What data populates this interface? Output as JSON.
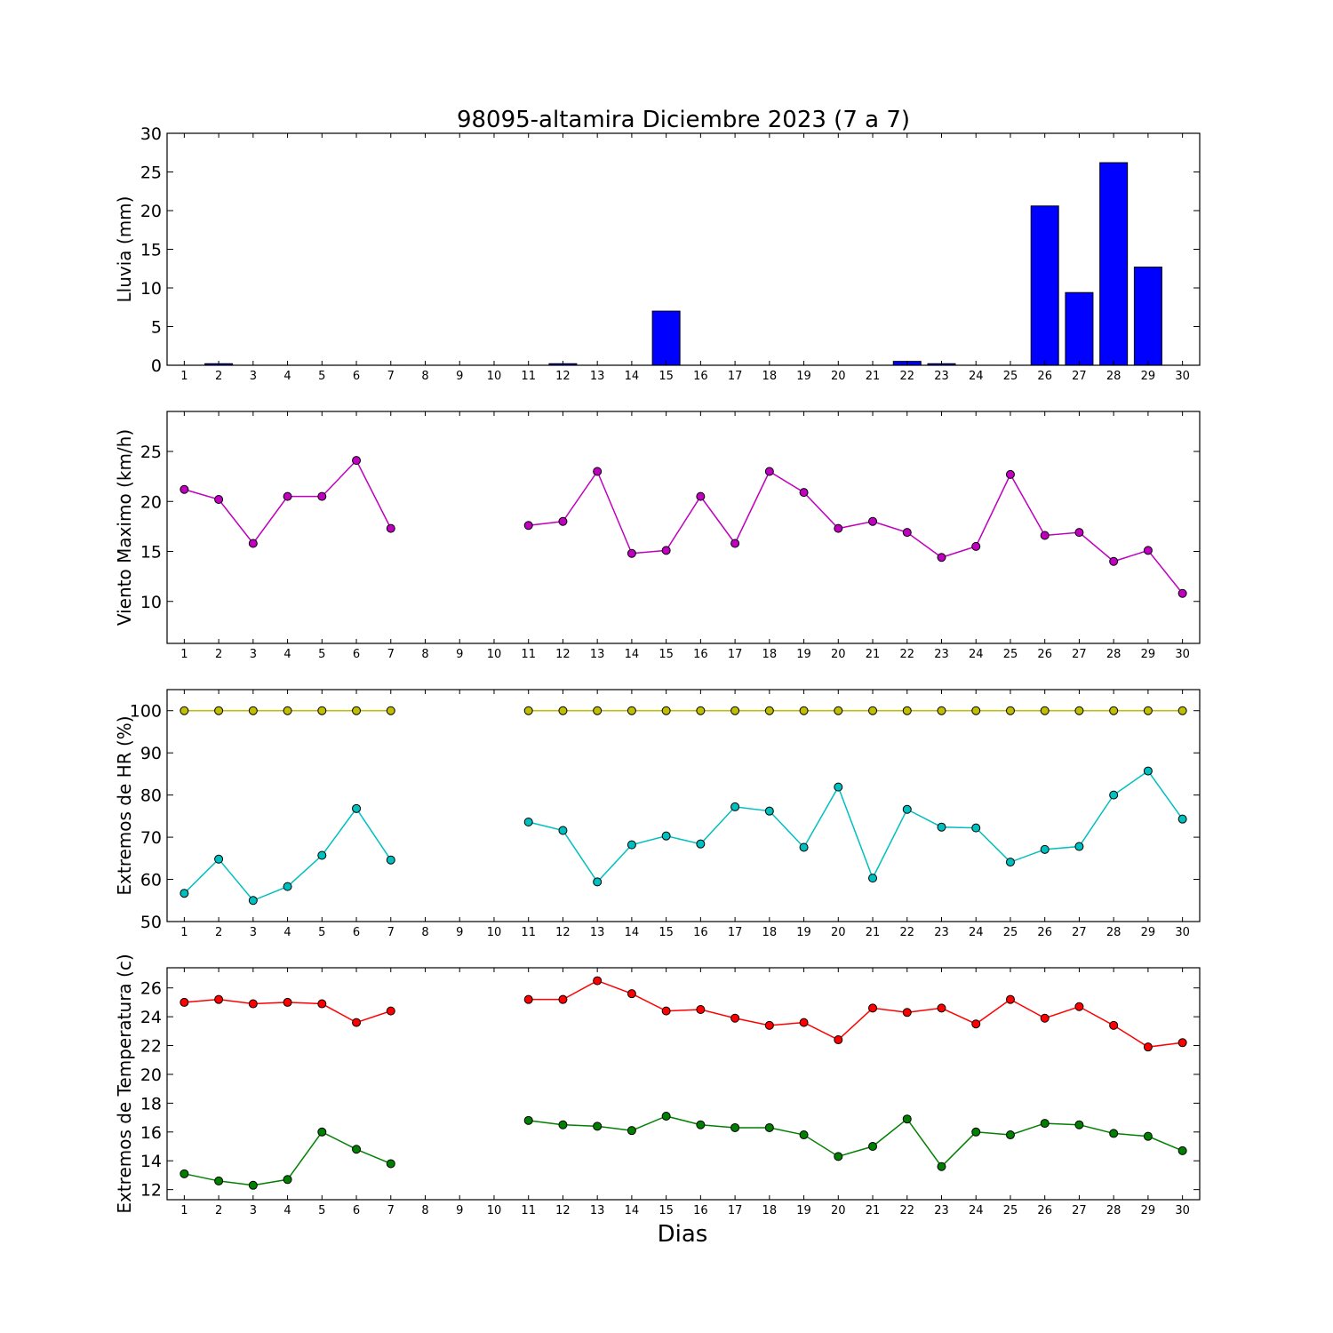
{
  "chart_data": [
    {
      "id": "lluvia",
      "type": "bar",
      "title": "98095-altamira Diciembre 2023  (7 a 7)",
      "ylabel": "Lluvia (mm)",
      "xlabel": "",
      "xlim": [
        0.5,
        30.5
      ],
      "ylim": [
        0,
        30
      ],
      "yticks": [
        0,
        5,
        10,
        15,
        20,
        25,
        30
      ],
      "xticks": [
        1,
        2,
        3,
        4,
        5,
        6,
        7,
        8,
        9,
        10,
        11,
        12,
        13,
        14,
        15,
        16,
        17,
        18,
        19,
        20,
        21,
        22,
        23,
        24,
        25,
        26,
        27,
        28,
        29,
        30
      ],
      "colors": {
        "bar": "#0000ff"
      },
      "series": [
        {
          "values": [
            0,
            0.2,
            0,
            0,
            0,
            0,
            0,
            null,
            null,
            null,
            0,
            0.2,
            0,
            0,
            7.0,
            0,
            0,
            0,
            0,
            0,
            0,
            0.5,
            0.2,
            0,
            0,
            20.6,
            9.4,
            26.2,
            12.7,
            0
          ]
        }
      ]
    },
    {
      "id": "viento",
      "type": "line",
      "title": "",
      "ylabel": "Viento Maximo (km/h)",
      "xlabel": "",
      "xlim": [
        0.5,
        30.5
      ],
      "ylim": [
        5.8,
        29.0
      ],
      "yticks": [
        10,
        15,
        20,
        25
      ],
      "xticks": [
        1,
        2,
        3,
        4,
        5,
        6,
        7,
        8,
        9,
        10,
        11,
        12,
        13,
        14,
        15,
        16,
        17,
        18,
        19,
        20,
        21,
        22,
        23,
        24,
        25,
        26,
        27,
        28,
        29,
        30
      ],
      "colors": {
        "line": "#bf00bf"
      },
      "series": [
        {
          "values": [
            21.2,
            20.2,
            15.8,
            20.5,
            20.5,
            24.1,
            17.3,
            null,
            null,
            null,
            17.6,
            18.0,
            23.0,
            14.8,
            15.1,
            20.5,
            15.8,
            23.0,
            20.9,
            17.3,
            18.0,
            16.9,
            14.4,
            15.5,
            22.7,
            16.6,
            16.9,
            14.0,
            15.1,
            10.8
          ]
        }
      ]
    },
    {
      "id": "hr",
      "type": "line",
      "title": "",
      "ylabel": "Extremos de HR (%)",
      "xlabel": "",
      "xlim": [
        0.5,
        30.5
      ],
      "ylim": [
        50,
        105
      ],
      "yticks": [
        50,
        60,
        70,
        80,
        90,
        100
      ],
      "xticks": [
        1,
        2,
        3,
        4,
        5,
        6,
        7,
        8,
        9,
        10,
        11,
        12,
        13,
        14,
        15,
        16,
        17,
        18,
        19,
        20,
        21,
        22,
        23,
        24,
        25,
        26,
        27,
        28,
        29,
        30
      ],
      "colors": {
        "max": "#bfbf00",
        "min": "#00bfbf"
      },
      "series": [
        {
          "values": [
            100,
            100,
            100,
            100,
            100,
            100,
            100,
            null,
            null,
            null,
            100,
            100,
            100,
            100,
            100,
            100,
            100,
            100,
            100,
            100,
            100,
            100,
            100,
            100,
            100,
            100,
            100,
            100,
            100,
            100
          ]
        },
        {
          "values": [
            56.7,
            64.8,
            55.0,
            58.3,
            65.7,
            76.8,
            64.6,
            null,
            null,
            null,
            73.6,
            71.6,
            59.4,
            68.2,
            70.3,
            68.4,
            77.2,
            76.2,
            67.6,
            81.9,
            60.3,
            76.6,
            72.4,
            72.2,
            64.1,
            67.1,
            67.8,
            80.0,
            85.7,
            74.3
          ]
        }
      ]
    },
    {
      "id": "temperatura",
      "type": "line",
      "title": "",
      "ylabel": "Extremos de Temperatura (c)",
      "xlabel": "Dias",
      "xlim": [
        0.5,
        30.5
      ],
      "ylim": [
        11.3,
        27.4
      ],
      "yticks": [
        12,
        14,
        16,
        18,
        20,
        22,
        24,
        26
      ],
      "xticks": [
        1,
        2,
        3,
        4,
        5,
        6,
        7,
        8,
        9,
        10,
        11,
        12,
        13,
        14,
        15,
        16,
        17,
        18,
        19,
        20,
        21,
        22,
        23,
        24,
        25,
        26,
        27,
        28,
        29,
        30
      ],
      "colors": {
        "max": "#ff0000",
        "min": "#008000"
      },
      "series": [
        {
          "values": [
            25.0,
            25.2,
            24.9,
            25.0,
            24.9,
            23.6,
            24.4,
            null,
            null,
            null,
            25.2,
            25.2,
            26.5,
            25.6,
            24.4,
            24.5,
            23.9,
            23.4,
            23.6,
            22.4,
            24.6,
            24.3,
            24.6,
            23.5,
            25.2,
            23.9,
            24.7,
            23.4,
            21.9,
            22.2
          ]
        },
        {
          "values": [
            13.1,
            12.6,
            12.3,
            12.7,
            16.0,
            14.8,
            13.8,
            null,
            null,
            null,
            16.8,
            16.5,
            16.4,
            16.1,
            17.1,
            16.5,
            16.3,
            16.3,
            15.8,
            14.3,
            15.0,
            16.9,
            13.6,
            16.0,
            15.8,
            16.6,
            16.5,
            15.9,
            15.7,
            14.7
          ]
        }
      ]
    }
  ]
}
